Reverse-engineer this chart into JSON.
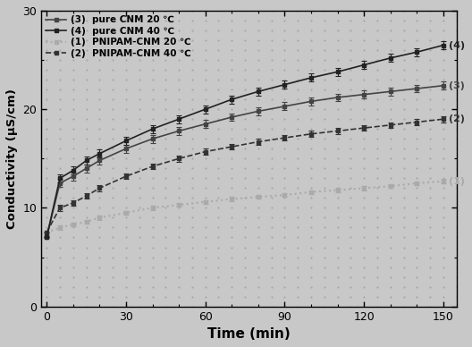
{
  "time": [
    0,
    5,
    10,
    15,
    20,
    30,
    40,
    50,
    60,
    70,
    80,
    90,
    100,
    110,
    120,
    130,
    140,
    150
  ],
  "series": {
    "4_pure_CNM_40": [
      7.0,
      13.0,
      13.8,
      14.8,
      15.5,
      16.8,
      18.0,
      19.0,
      20.0,
      21.0,
      21.8,
      22.5,
      23.2,
      23.8,
      24.5,
      25.2,
      25.8,
      26.5
    ],
    "3_pure_CNM_20": [
      7.0,
      12.5,
      13.2,
      14.0,
      14.8,
      16.0,
      17.0,
      17.8,
      18.5,
      19.2,
      19.8,
      20.3,
      20.8,
      21.2,
      21.5,
      21.8,
      22.1,
      22.4
    ],
    "2_PNIPAM_CNM_40": [
      7.5,
      10.0,
      10.5,
      11.2,
      12.0,
      13.2,
      14.2,
      15.0,
      15.7,
      16.2,
      16.7,
      17.1,
      17.5,
      17.8,
      18.1,
      18.4,
      18.7,
      19.0
    ],
    "1_PNIPAM_CNM_20": [
      7.5,
      8.0,
      8.3,
      8.6,
      9.0,
      9.5,
      10.0,
      10.3,
      10.6,
      10.9,
      11.1,
      11.3,
      11.6,
      11.8,
      12.0,
      12.2,
      12.5,
      12.7
    ]
  },
  "errors": {
    "4_pure_CNM_40": [
      0.0,
      0.4,
      0.4,
      0.4,
      0.4,
      0.4,
      0.4,
      0.4,
      0.4,
      0.4,
      0.4,
      0.4,
      0.4,
      0.4,
      0.4,
      0.4,
      0.4,
      0.4
    ],
    "3_pure_CNM_20": [
      0.0,
      0.4,
      0.4,
      0.4,
      0.4,
      0.4,
      0.4,
      0.4,
      0.4,
      0.4,
      0.4,
      0.4,
      0.4,
      0.4,
      0.4,
      0.4,
      0.4,
      0.4
    ],
    "2_PNIPAM_CNM_40": [
      0.0,
      0.3,
      0.3,
      0.3,
      0.3,
      0.3,
      0.3,
      0.3,
      0.3,
      0.3,
      0.3,
      0.3,
      0.3,
      0.3,
      0.3,
      0.3,
      0.3,
      0.3
    ],
    "1_PNIPAM_CNM_20": [
      0.0,
      0.2,
      0.2,
      0.2,
      0.2,
      0.2,
      0.2,
      0.2,
      0.2,
      0.2,
      0.2,
      0.2,
      0.2,
      0.2,
      0.2,
      0.2,
      0.2,
      0.2
    ]
  },
  "colors": {
    "4_pure_CNM_40": "#222222",
    "3_pure_CNM_20": "#444444",
    "2_PNIPAM_CNM_40": "#333333",
    "1_PNIPAM_CNM_20": "#aaaaaa"
  },
  "linestyles": {
    "4_pure_CNM_40": "-",
    "3_pure_CNM_20": "-",
    "2_PNIPAM_CNM_40": "--",
    "1_PNIPAM_CNM_20": ":"
  },
  "labels": {
    "4_pure_CNM_40": "(4)",
    "3_pure_CNM_20": "(3)",
    "2_PNIPAM_CNM_40": "(2)",
    "1_PNIPAM_CNM_20": "(1)"
  },
  "legend_lines": [
    {
      "key": "3",
      "text": "(3)  pure CNM 20 ℃",
      "color": "#444444",
      "ls": "-",
      "lw": 1.2
    },
    {
      "key": "4",
      "text": "(4)  pure CNM 40 ℃",
      "color": "#222222",
      "ls": "-",
      "lw": 1.2
    },
    {
      "key": "1",
      "text": "(1)  PNIPAM-CNM 20 ℃",
      "color": "#aaaaaa",
      "ls": ":",
      "lw": 1.5
    },
    {
      "key": "2",
      "text": "(2)  PNIPAM-CNM 40 ℃",
      "color": "#333333",
      "ls": "--",
      "lw": 1.2
    }
  ],
  "xlabel": "Time (min)",
  "ylabel": "Conductivity (μS/cm)",
  "xlim": [
    -2,
    155
  ],
  "ylim": [
    0,
    30
  ],
  "xticks": [
    0,
    30,
    60,
    90,
    120,
    150
  ],
  "yticks": [
    0,
    10,
    20,
    30
  ],
  "background_color": "#c8c8c8",
  "plot_bg_color": "#c8c8c8",
  "figsize": [
    5.28,
    3.88
  ],
  "dpi": 100
}
